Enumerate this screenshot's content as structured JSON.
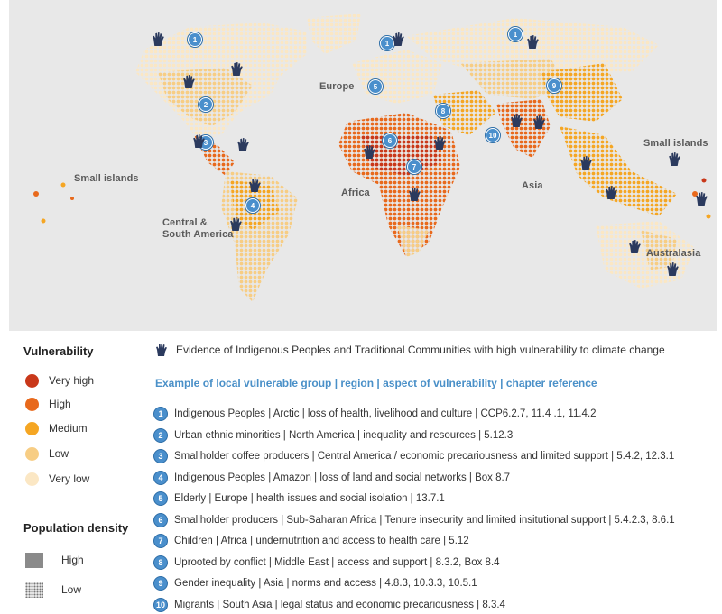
{
  "map": {
    "region_labels": {
      "europe": "Europe",
      "africa": "Africa",
      "asia": "Asia",
      "small_islands_pacific": "Small islands",
      "small_islands_east": "Small islands",
      "central_south_america": "Central &\nSouth America",
      "australasia": "Australasia"
    },
    "markers": [
      "1",
      "1",
      "1",
      "2",
      "3",
      "4",
      "5",
      "6",
      "7",
      "8",
      "9",
      "10"
    ],
    "colors": {
      "very_high": "#c9381a",
      "high": "#e8691c",
      "medium": "#f5a623",
      "low": "#f7cd84",
      "very_low": "#fbe7c4",
      "background": "#e8e8e8",
      "marker": "#4a8fcc",
      "hand_icon": "#2b3a5e"
    }
  },
  "legend": {
    "vulnerability": {
      "title": "Vulnerability",
      "items": [
        {
          "label": "Very high",
          "color": "#c9381a"
        },
        {
          "label": "High",
          "color": "#e8691c"
        },
        {
          "label": "Medium",
          "color": "#f5a623"
        },
        {
          "label": "Low",
          "color": "#f7cd84"
        },
        {
          "label": "Very low",
          "color": "#fbe7c4"
        }
      ]
    },
    "population": {
      "title": "Population density",
      "items": [
        {
          "label": "High",
          "pattern": "solid"
        },
        {
          "label": "Low",
          "pattern": "dotted"
        }
      ]
    }
  },
  "evidence": {
    "icon": "hand-icon",
    "text": "Evidence of Indigenous Peoples and Traditional Communities with high vulnerability to climate change"
  },
  "examples": {
    "header": "Example of local vulnerable group | region | aspect of vulnerability | chapter reference",
    "rows": [
      {
        "num": "1",
        "text": "Indigenous Peoples | Arctic | loss of health, livelihood and culture | CCP6.2.7, 11.4 .1, 11.4.2"
      },
      {
        "num": "2",
        "text": "Urban ethnic minorities | North America | inequality and resources | 5.12.3"
      },
      {
        "num": "3",
        "text": "Smallholder coffee producers | Central America / economic precariousness and limited support | 5.4.2, 12.3.1"
      },
      {
        "num": "4",
        "text": "Indigenous Peoples | Amazon | loss of land and social networks | Box 8.7"
      },
      {
        "num": "5",
        "text": "Elderly | Europe | health issues and social isolation | 13.7.1"
      },
      {
        "num": "6",
        "text": "Smallholder producers | Sub-Saharan Africa | Tenure insecurity and limited insitutional support | 5.4.2.3, 8.6.1"
      },
      {
        "num": "7",
        "text": "Children | Africa | undernutrition and access to health care | 5.12"
      },
      {
        "num": "8",
        "text": "Uprooted by conflict | Middle East | access and support | 8.3.2, Box 8.4"
      },
      {
        "num": "9",
        "text": "Gender inequality | Asia | norms and access | 4.8.3, 10.3.3, 10.5.1"
      },
      {
        "num": "10",
        "text": "Migrants | South Asia | legal status and economic precariousness | 8.3.4"
      }
    ]
  }
}
